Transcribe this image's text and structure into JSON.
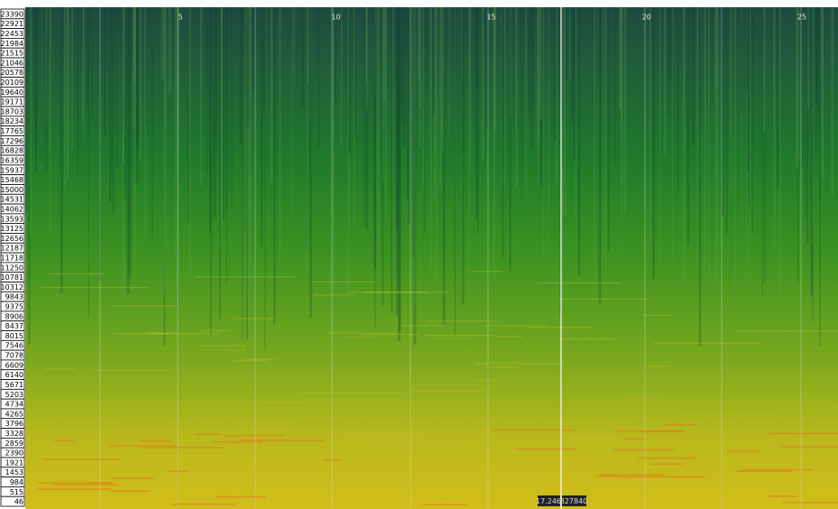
{
  "frequency_labels": [
    "23390",
    "22921",
    "22453",
    "21984",
    "21515",
    "21046",
    "20578",
    "20109",
    "19640",
    "19171",
    "18703",
    "18234",
    "17765",
    "17296",
    "16828",
    "16359",
    "15937",
    "15468",
    "15000",
    "14531",
    "14062",
    "13593",
    "13125",
    "12656",
    "12187",
    "11718",
    "11250",
    "10781",
    "10312",
    "9843",
    "9375",
    "8906",
    "8437",
    "8015",
    "7546",
    "7078",
    "6609",
    "6140",
    "5671",
    "5203",
    "4734",
    "4265",
    "3796",
    "3328",
    "2859",
    "2390",
    "1921",
    "1453",
    "984",
    "515",
    "46"
  ],
  "time_labels": [
    "5",
    "10",
    "15",
    "20",
    "25"
  ],
  "cursor": {
    "time": "17.246",
    "frequency": "827840"
  }
}
